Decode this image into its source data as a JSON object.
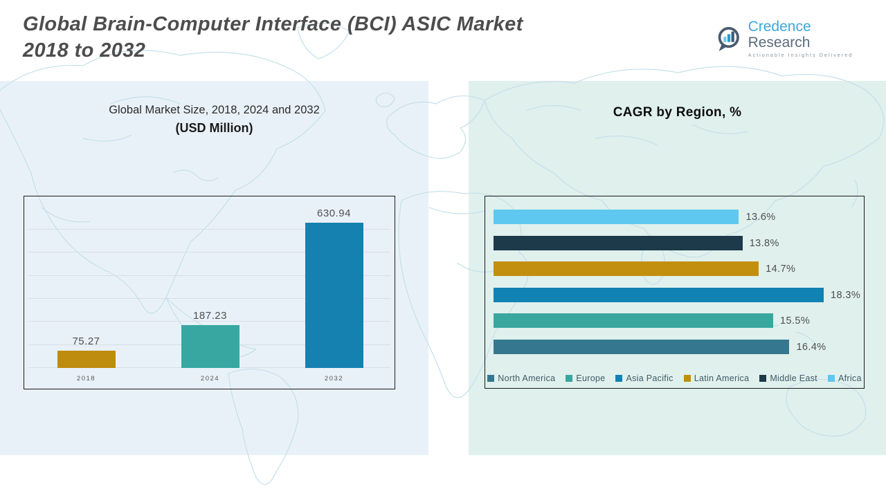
{
  "header": {
    "title_line1": "Global Brain-Computer Interface (BCI) ASIC Market",
    "title_line2": "2018 to 2032",
    "logo": {
      "brand_primary": "Credence",
      "brand_secondary": "Research",
      "tagline": "Actionable Insights Delivered"
    }
  },
  "left_panel": {
    "subtitle_line1": "Global Market Size, 2018, 2024 and 2032",
    "subtitle_line2": "(USD Million)"
  },
  "right_panel": {
    "title": "CAGR by Region, %"
  },
  "chart_data": [
    {
      "type": "bar",
      "title": "Global Market Size, 2018, 2024 and 2032 (USD Million)",
      "categories": [
        "2018",
        "2024",
        "2032"
      ],
      "values": [
        75.27,
        187.23,
        630.94
      ],
      "data_labels": [
        "75.27",
        "187.23",
        "630.94"
      ],
      "colors": [
        "#BE8D0F",
        "#38A7A2",
        "#1581B0"
      ],
      "xlabel": "",
      "ylabel": "USD Million",
      "ylim": [
        0,
        750
      ],
      "gridline_step": 100,
      "grid": true,
      "legend": "none"
    },
    {
      "type": "bar",
      "orientation": "horizontal",
      "title": "CAGR by Region, %",
      "series_top_to_bottom": [
        {
          "region": "Africa",
          "value": 13.6,
          "label": "13.6%",
          "color": "#5FC8F1"
        },
        {
          "region": "Middle East",
          "value": 13.8,
          "label": "13.8%",
          "color": "#1C3A49"
        },
        {
          "region": "Latin America",
          "value": 14.7,
          "label": "14.7%",
          "color": "#C28F0E"
        },
        {
          "region": "Asia Pacific",
          "value": 18.3,
          "label": "18.3%",
          "color": "#1182B4"
        },
        {
          "region": "Europe",
          "value": 15.5,
          "label": "15.5%",
          "color": "#3AA79F"
        },
        {
          "region": "North America",
          "value": 16.4,
          "label": "16.4%",
          "color": "#35778F"
        }
      ],
      "legend_order": [
        "North America",
        "Europe",
        "Asia Pacific",
        "Latin America",
        "Middle East",
        "Africa"
      ],
      "legend_position": "bottom",
      "xlim": [
        0,
        20
      ],
      "grid": false
    }
  ],
  "colors": {
    "left_panel_bg": "#E9F1F8",
    "right_panel_bg": "#E0F0ED",
    "map_line": "#C3E0EA",
    "title_text": "#4D4D4D",
    "chart_border": "#1A1A1A"
  }
}
